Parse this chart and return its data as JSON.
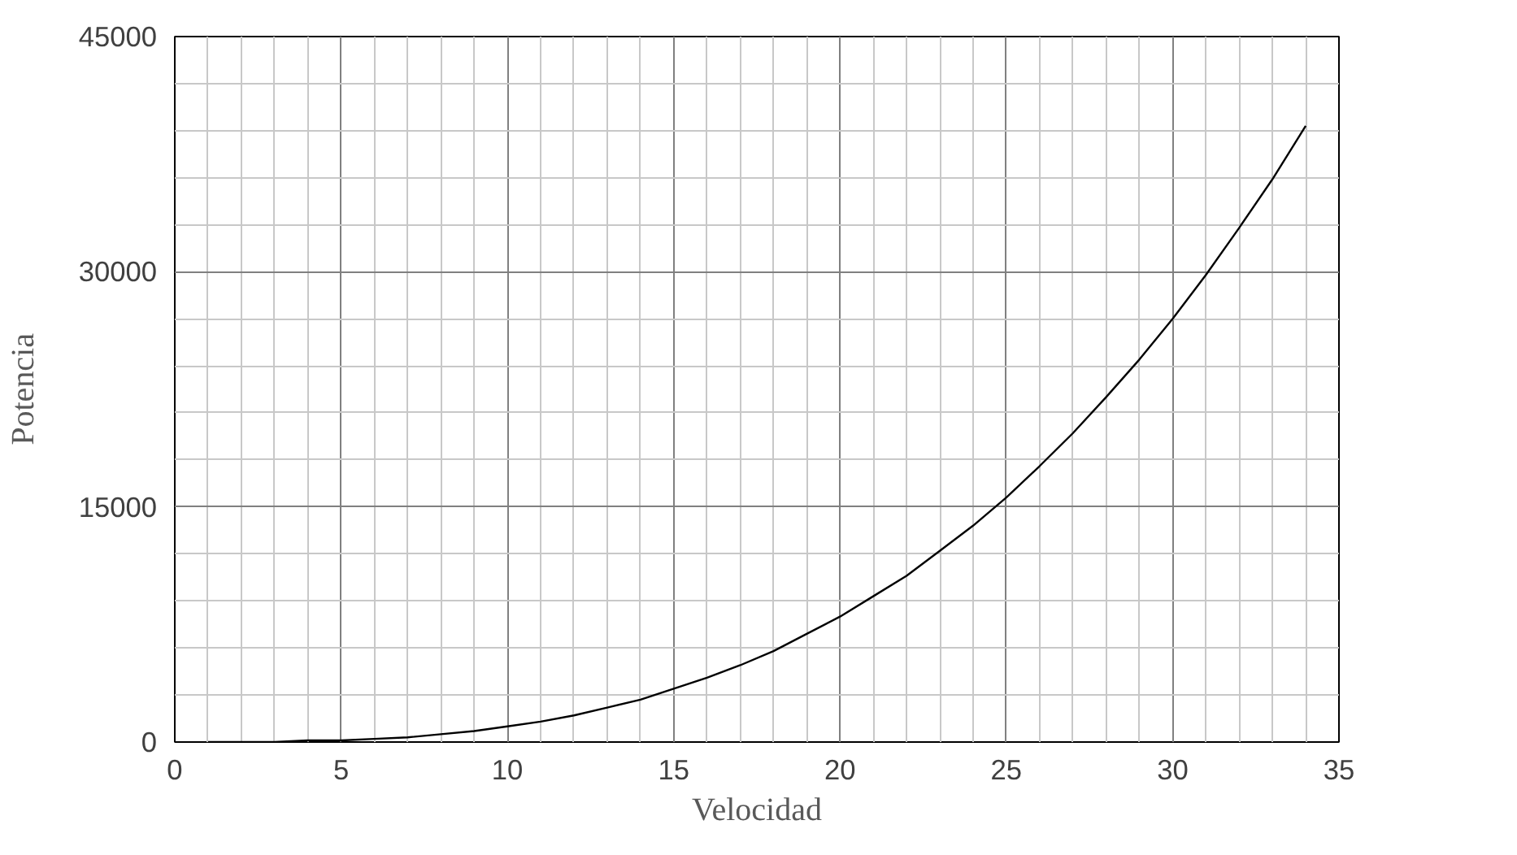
{
  "chart_data": {
    "type": "line",
    "xlabel": "Velocidad",
    "ylabel": "Potencia",
    "x": [
      1,
      2,
      3,
      4,
      5,
      6,
      7,
      8,
      9,
      10,
      11,
      12,
      13,
      14,
      15,
      16,
      17,
      18,
      19,
      20,
      21,
      22,
      23,
      24,
      25,
      26,
      27,
      28,
      29,
      30,
      31,
      32,
      33,
      34
    ],
    "series": [
      {
        "color": "#000000",
        "values": [
          0,
          0,
          0,
          100,
          100,
          200,
          300,
          500,
          700,
          1000,
          1300,
          1700,
          2200,
          2700,
          3400,
          4100,
          4900,
          5800,
          6900,
          8000,
          9300,
          10600,
          12200,
          13800,
          15600,
          17600,
          19700,
          22000,
          24400,
          27000,
          29800,
          32800,
          35900,
          39300
        ]
      }
    ],
    "xlim": [
      0,
      35
    ],
    "xticks": [
      0,
      5,
      10,
      15,
      20,
      25,
      30,
      35
    ],
    "ylim": [
      0,
      45000
    ],
    "yticks": [
      0,
      15000,
      30000,
      45000
    ],
    "grid": true,
    "marker": "none",
    "line_style": "solid"
  }
}
